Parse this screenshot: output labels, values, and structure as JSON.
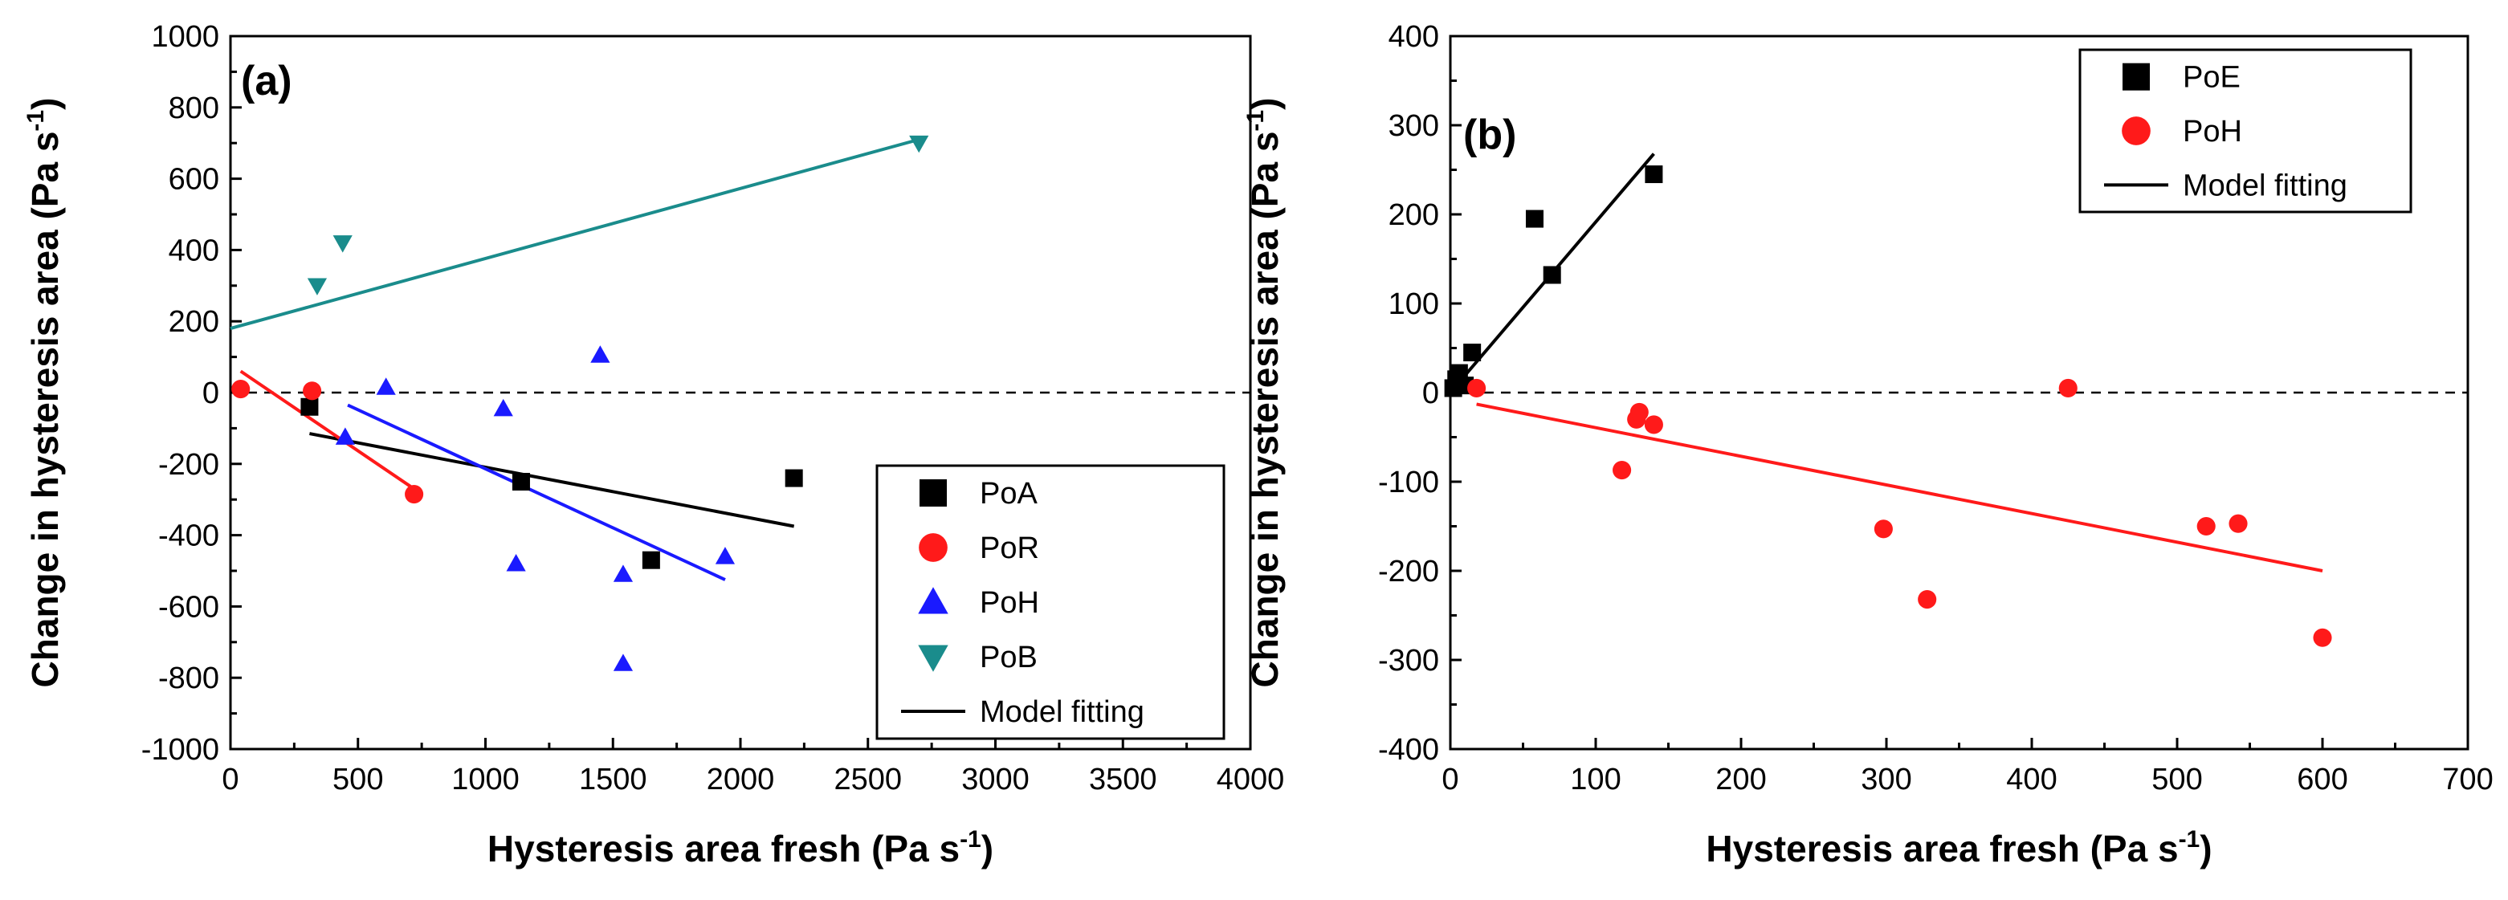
{
  "chart_data": [
    {
      "type": "scatter",
      "panel_label": "(a)",
      "xlabel": "Hysteresis area fresh (Pa s",
      "ylabel": "Change in hysteresis area (Pa s",
      "unit_superscript": "-1",
      "xlim": [
        0,
        4000
      ],
      "ylim": [
        -1000,
        1000
      ],
      "xticks": [
        0,
        500,
        1000,
        1500,
        2000,
        2500,
        3000,
        3500,
        4000
      ],
      "yticks": [
        -1000,
        -800,
        -600,
        -400,
        -200,
        0,
        200,
        400,
        600,
        800,
        1000
      ],
      "zero_line": true,
      "legend_position": "bottom-right",
      "series": [
        {
          "name": "PoA",
          "marker": "square",
          "color": "#000000",
          "points": [
            [
              310,
              -40
            ],
            [
              1140,
              -250
            ],
            [
              1650,
              -470
            ],
            [
              2210,
              -240
            ]
          ],
          "fit": [
            [
              310,
              -115
            ],
            [
              2210,
              -375
            ]
          ]
        },
        {
          "name": "PoR",
          "marker": "circle",
          "color": "#ff1a1a",
          "points": [
            [
              40,
              10
            ],
            [
              320,
              5
            ],
            [
              720,
              -285
            ]
          ],
          "fit": [
            [
              40,
              60
            ],
            [
              720,
              -270
            ]
          ]
        },
        {
          "name": "PoH",
          "marker": "triangle-up",
          "color": "#1a1aff",
          "points": [
            [
              450,
              -125
            ],
            [
              610,
              15
            ],
            [
              1070,
              -45
            ],
            [
              1120,
              -480
            ],
            [
              1450,
              105
            ],
            [
              1540,
              -510
            ],
            [
              1540,
              -760
            ],
            [
              1940,
              -460
            ]
          ],
          "fit": [
            [
              460,
              -35
            ],
            [
              1940,
              -525
            ]
          ]
        },
        {
          "name": "PoB",
          "marker": "triangle-down",
          "color": "#1a8c8c",
          "points": [
            [
              340,
              300
            ],
            [
              440,
              420
            ],
            [
              2700,
              700
            ]
          ],
          "fit": [
            [
              0,
              180
            ],
            [
              2700,
              710
            ]
          ]
        },
        {
          "name": "Model fitting",
          "marker": "line",
          "color": "#000000",
          "points": []
        }
      ]
    },
    {
      "type": "scatter",
      "panel_label": "(b)",
      "xlabel": "Hysteresis area fresh (Pa s",
      "ylabel": "Change in hysteresis area (Pa s",
      "unit_superscript": "-1",
      "xlim": [
        0,
        700
      ],
      "ylim": [
        -400,
        400
      ],
      "xticks": [
        0,
        100,
        200,
        300,
        400,
        500,
        600,
        700
      ],
      "yticks": [
        -400,
        -300,
        -200,
        -100,
        0,
        100,
        200,
        300,
        400
      ],
      "zero_line": true,
      "legend_position": "top-right",
      "series": [
        {
          "name": "PoE",
          "marker": "square",
          "color": "#000000",
          "points": [
            [
              2,
              5
            ],
            [
              4,
              15
            ],
            [
              6,
              22
            ],
            [
              10,
              8
            ],
            [
              15,
              45
            ],
            [
              58,
              195
            ],
            [
              70,
              132
            ],
            [
              140,
              245
            ]
          ],
          "fit": [
            [
              0,
              0
            ],
            [
              140,
              268
            ]
          ]
        },
        {
          "name": "PoH",
          "marker": "circle",
          "color": "#ff1a1a",
          "points": [
            [
              18,
              5
            ],
            [
              118,
              -87
            ],
            [
              128,
              -30
            ],
            [
              130,
              -22
            ],
            [
              140,
              -36
            ],
            [
              298,
              -153
            ],
            [
              328,
              -232
            ],
            [
              425,
              5
            ],
            [
              520,
              -150
            ],
            [
              542,
              -147
            ],
            [
              600,
              -275
            ]
          ],
          "fit": [
            [
              18,
              -13
            ],
            [
              600,
              -200
            ]
          ]
        },
        {
          "name": "Model fitting",
          "marker": "line",
          "color": "#000000",
          "points": []
        }
      ]
    }
  ]
}
